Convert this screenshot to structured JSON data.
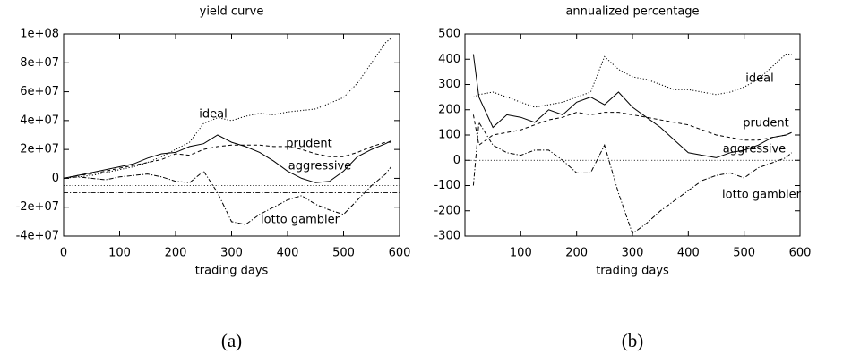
{
  "chart_data": [
    {
      "type": "line",
      "title": "yield curve",
      "xlabel": "trading days",
      "caption": "(a)",
      "xlim": [
        0,
        600
      ],
      "xticks": [
        0,
        100,
        200,
        300,
        400,
        500,
        600
      ],
      "ylim": [
        -40000000,
        100000000
      ],
      "yticks": [
        {
          "value": -40000000,
          "label": "-4e+07"
        },
        {
          "value": -20000000,
          "label": "-2e+07"
        },
        0,
        {
          "value": 20000000,
          "label": "2e+07"
        },
        {
          "value": 40000000,
          "label": "4e+07"
        },
        {
          "value": 60000000,
          "label": "6e+07"
        },
        {
          "value": 80000000,
          "label": "8e+07"
        },
        {
          "value": 100000000,
          "label": "1e+08"
        }
      ],
      "hlines": [
        -5000000,
        -10000000
      ],
      "hline_styles": [
        "dotted",
        "dashdot"
      ],
      "x": [
        0,
        25,
        50,
        75,
        100,
        125,
        150,
        175,
        200,
        225,
        250,
        275,
        300,
        325,
        350,
        375,
        400,
        425,
        450,
        475,
        500,
        525,
        550,
        575,
        585
      ],
      "series": [
        {
          "name": "ideal",
          "color": "#000000",
          "style": "dotted",
          "values": [
            0,
            1000000,
            2000000,
            4000000,
            6000000,
            8000000,
            11000000,
            15000000,
            20000000,
            25000000,
            38000000,
            42000000,
            40000000,
            43000000,
            45000000,
            44000000,
            46000000,
            47000000,
            48000000,
            52000000,
            56000000,
            66000000,
            80000000,
            94000000,
            97000000
          ]
        },
        {
          "name": "prudent",
          "color": "#000000",
          "style": "dashed",
          "values": [
            0,
            2000000,
            3000000,
            5000000,
            7000000,
            9000000,
            11000000,
            13000000,
            17000000,
            16000000,
            20000000,
            22000000,
            23000000,
            23000000,
            23000000,
            22000000,
            22000000,
            20000000,
            17000000,
            15000000,
            15000000,
            18000000,
            22000000,
            25000000,
            25000000
          ]
        },
        {
          "name": "aggressive",
          "color": "#000000",
          "style": "solid",
          "values": [
            0,
            2000000,
            4000000,
            6000000,
            8000000,
            10000000,
            14000000,
            17000000,
            18000000,
            22000000,
            24000000,
            30000000,
            25000000,
            22000000,
            18000000,
            12000000,
            5000000,
            0,
            -3000000,
            -2000000,
            5000000,
            15000000,
            20000000,
            24000000,
            26000000
          ]
        },
        {
          "name": "lotto gambler",
          "color": "#000000",
          "style": "dashdot",
          "values": [
            0,
            1000000,
            0,
            -1000000,
            1000000,
            2000000,
            3000000,
            1000000,
            -2000000,
            -3000000,
            5000000,
            -10000000,
            -30000000,
            -32000000,
            -25000000,
            -20000000,
            -15000000,
            -12000000,
            -18000000,
            -22000000,
            -25000000,
            -15000000,
            -5000000,
            3000000,
            8000000
          ]
        }
      ]
    },
    {
      "type": "line",
      "title": "annualized percentage",
      "xlabel": "trading days",
      "caption": "(b)",
      "xlim": [
        0,
        600
      ],
      "xticks": [
        100,
        200,
        300,
        400,
        500,
        600
      ],
      "ylim": [
        -300,
        500
      ],
      "yticks": [
        -300,
        -200,
        -100,
        0,
        100,
        200,
        300,
        400,
        500
      ],
      "hlines": [
        0
      ],
      "hline_styles": [
        "dotted"
      ],
      "x": [
        15,
        25,
        50,
        75,
        100,
        125,
        150,
        175,
        200,
        225,
        250,
        275,
        300,
        325,
        350,
        375,
        400,
        425,
        450,
        475,
        500,
        525,
        550,
        575,
        585
      ],
      "series": [
        {
          "name": "ideal",
          "color": "#000000",
          "style": "dotted",
          "values": [
            250,
            260,
            270,
            250,
            230,
            210,
            220,
            230,
            250,
            270,
            410,
            360,
            330,
            320,
            300,
            280,
            280,
            270,
            260,
            270,
            290,
            320,
            370,
            420,
            420
          ]
        },
        {
          "name": "prudent",
          "color": "#000000",
          "style": "dashed",
          "values": [
            180,
            60,
            100,
            110,
            120,
            140,
            160,
            170,
            190,
            180,
            190,
            190,
            180,
            170,
            160,
            150,
            140,
            120,
            100,
            90,
            80,
            80,
            90,
            100,
            110
          ]
        },
        {
          "name": "aggressive",
          "color": "#000000",
          "style": "solid",
          "values": [
            420,
            250,
            130,
            180,
            170,
            150,
            200,
            180,
            230,
            250,
            220,
            270,
            210,
            170,
            130,
            80,
            30,
            20,
            10,
            30,
            40,
            60,
            90,
            100,
            110
          ]
        },
        {
          "name": "lotto gambler",
          "color": "#000000",
          "style": "dashdot",
          "values": [
            -100,
            150,
            60,
            30,
            20,
            40,
            40,
            0,
            -50,
            -50,
            60,
            -130,
            -290,
            -250,
            -200,
            -160,
            -120,
            -80,
            -60,
            -50,
            -70,
            -30,
            -10,
            10,
            30
          ]
        }
      ]
    }
  ]
}
